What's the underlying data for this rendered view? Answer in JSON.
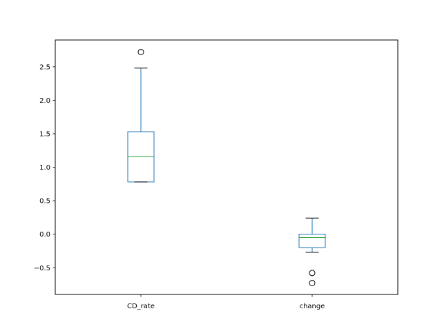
{
  "chart_data": {
    "type": "boxplot",
    "categories": [
      "CD_rate",
      "change"
    ],
    "boxes": [
      {
        "category": "CD_rate",
        "whisker_low": 0.78,
        "q1": 0.78,
        "median": 1.16,
        "q3": 1.53,
        "whisker_high": 2.48,
        "outliers": [
          2.72
        ]
      },
      {
        "category": "change",
        "whisker_low": -0.27,
        "q1": -0.2,
        "median": -0.05,
        "q3": 0.0,
        "whisker_high": 0.24,
        "outliers": [
          -0.58,
          -0.73
        ]
      }
    ],
    "ylim": [
      -0.9,
      2.9
    ],
    "yticks": [
      -0.5,
      0.0,
      0.5,
      1.0,
      1.5,
      2.0,
      2.5
    ],
    "ytick_labels": [
      "−0.5",
      "0.0",
      "0.5",
      "1.0",
      "1.5",
      "2.0",
      "2.5"
    ],
    "grid": false,
    "colors": {
      "box": "#1f77b4",
      "median": "#2ca02c",
      "whisker_cap": "#000000",
      "outlier": "#000000"
    }
  }
}
